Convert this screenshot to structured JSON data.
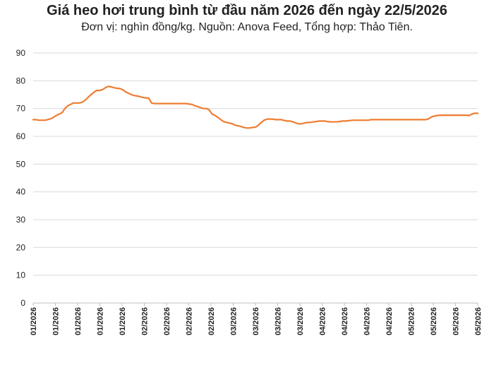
{
  "chart_data": {
    "type": "line",
    "title": "Giá heo hơi trung bình từ đầu năm 2026 đến ngày 22/5/2026",
    "subtitle": "Đơn vị: nghìn đồng/kg. Nguồn: Anova Feed, Tổng hợp: Thảo Tiên.",
    "xlabel": "",
    "ylabel": "",
    "ylim": [
      0,
      90
    ],
    "yticks": [
      0,
      10,
      20,
      30,
      40,
      50,
      60,
      70,
      80,
      90
    ],
    "grid": true,
    "legend": "none",
    "line_color": "#ED7D31",
    "x_tick_labels": [
      "01/2026",
      "01/2026",
      "01/2026",
      "01/2026",
      "01/2026",
      "02/2026",
      "02/2026",
      "02/2026",
      "02/2026",
      "03/2026",
      "03/2026",
      "03/2026",
      "03/2026",
      "04/2026",
      "04/2026",
      "04/2026",
      "04/2026",
      "05/2026",
      "05/2026",
      "05/2026",
      "05/2026"
    ],
    "values": [
      66.0,
      66.0,
      65.8,
      65.8,
      65.8,
      66.0,
      66.3,
      66.8,
      67.5,
      68.0,
      68.5,
      70.0,
      71.0,
      71.5,
      72.0,
      72.0,
      72.0,
      72.3,
      73.0,
      74.0,
      75.0,
      75.8,
      76.5,
      76.5,
      76.8,
      77.5,
      78.0,
      77.8,
      77.5,
      77.3,
      77.2,
      76.8,
      76.0,
      75.5,
      75.0,
      74.7,
      74.5,
      74.3,
      74.0,
      73.8,
      73.8,
      72.0,
      71.8,
      71.8,
      71.8,
      71.8,
      71.8,
      71.8,
      71.8,
      71.8,
      71.8,
      71.8,
      71.8,
      71.8,
      71.6,
      71.5,
      71.0,
      70.7,
      70.3,
      70.0,
      70.0,
      69.5,
      68.0,
      67.5,
      66.8,
      66.0,
      65.3,
      65.0,
      64.8,
      64.5,
      64.0,
      63.8,
      63.5,
      63.2,
      63.0,
      63.0,
      63.2,
      63.3,
      64.0,
      65.0,
      65.8,
      66.2,
      66.2,
      66.2,
      66.0,
      66.0,
      66.0,
      65.7,
      65.5,
      65.5,
      65.2,
      64.8,
      64.5,
      64.5,
      64.8,
      65.0,
      65.0,
      65.2,
      65.3,
      65.5,
      65.5,
      65.5,
      65.3,
      65.2,
      65.2,
      65.2,
      65.3,
      65.5,
      65.5,
      65.6,
      65.7,
      65.8,
      65.8,
      65.8,
      65.8,
      65.8,
      65.8,
      66.0,
      66.0,
      66.0,
      66.0,
      66.0,
      66.0,
      66.0,
      66.0,
      66.0,
      66.0,
      66.0,
      66.0,
      66.0,
      66.0,
      66.0,
      66.0,
      66.0,
      66.0,
      66.0,
      66.0,
      66.3,
      67.0,
      67.3,
      67.5,
      67.6,
      67.6,
      67.6,
      67.6,
      67.6,
      67.6,
      67.6,
      67.6,
      67.6,
      67.6,
      67.5,
      68.0,
      68.3,
      68.3
    ]
  }
}
